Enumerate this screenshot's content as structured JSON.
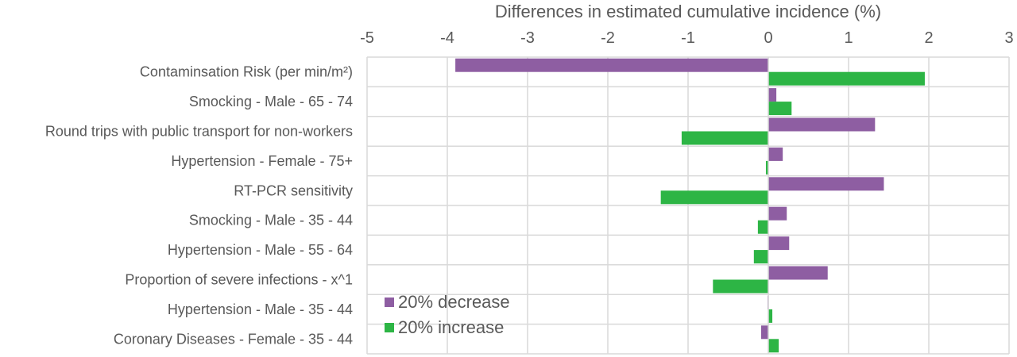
{
  "chart_data": {
    "type": "bar",
    "orientation": "horizontal",
    "title": "Differences in estimated cumulative incidence (%)",
    "xlim": [
      -5,
      3
    ],
    "x_ticks": [
      "-5",
      "-4",
      "-3",
      "-2",
      "-1",
      "0",
      "1",
      "2",
      "3"
    ],
    "grid": true,
    "legend_position": "bottom-left",
    "categories": [
      "Contaminsation Risk (per min/m²)",
      "Smocking - Male - 65 - 74",
      "Round trips with public transport for non-workers",
      "Hypertension - Female - 75+",
      "RT-PCR sensitivity",
      "Smocking - Male - 35 - 44",
      "Hypertension - Male - 55 - 64",
      "Proportion of severe infections - x^1",
      "Hypertension - Male - 35 - 44",
      "Coronary Diseases - Female - 35 - 44"
    ],
    "series": [
      {
        "name": "20% decrease",
        "color": "#8e5ea2",
        "values": [
          -3.9,
          0.1,
          1.33,
          0.18,
          1.44,
          0.23,
          0.26,
          0.74,
          -0.01,
          -0.09
        ]
      },
      {
        "name": "20% increase",
        "color": "#2db545",
        "values": [
          1.95,
          0.29,
          -1.08,
          -0.03,
          -1.34,
          -0.13,
          -0.18,
          -0.69,
          0.05,
          0.13
        ]
      }
    ]
  }
}
